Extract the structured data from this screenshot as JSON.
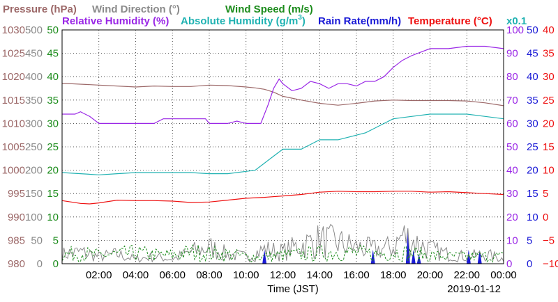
{
  "chart_data": {
    "type": "line",
    "legend": [
      {
        "key": "pressure",
        "label": "Pressure (hPa)",
        "color": "#9c6868"
      },
      {
        "key": "wind_direction",
        "label": "Wind Direction (°)",
        "color": "#8a8a8a"
      },
      {
        "key": "wind_speed",
        "label": "Wind Speed (m/s)",
        "color": "#1c8c1c"
      },
      {
        "key": "relative_humidity",
        "label": "Relative Humidity (%)",
        "color": "#9a27e6"
      },
      {
        "key": "absolute_humidity",
        "label": "Absolute Humidity (g/m",
        "superscript": "3",
        "label_suffix": ")",
        "color": "#20b2b2"
      },
      {
        "key": "rain_rate",
        "label": "Rain Rate(mm/h)",
        "color": "#1a1ad6"
      },
      {
        "key": "temperature",
        "label": "Temperature (°C)",
        "color": "#ee1111"
      },
      {
        "key": "abs_humidity_scale",
        "label": "x0.1",
        "color": "#20b2b2"
      }
    ],
    "xlabel": "Time (JST)",
    "date_label": "2019-01-12",
    "x_ticks": [
      "02:00",
      "04:00",
      "06:00",
      "08:00",
      "10:00",
      "12:00",
      "14:00",
      "16:00",
      "18:00",
      "20:00",
      "22:00",
      "00:00"
    ],
    "xlim": [
      0,
      24
    ],
    "grid": true,
    "axes": {
      "pressure": {
        "ticks": [
          "980",
          "985",
          "990",
          "995",
          "1000",
          "1005",
          "1010",
          "1015",
          "1020",
          "1025",
          "1030"
        ],
        "ylim": [
          980,
          1030
        ],
        "color": "#9c6868",
        "side": "left"
      },
      "wind_direction": {
        "ticks": [
          "0",
          "50",
          "100",
          "150",
          "200",
          "250",
          "300",
          "350",
          "400",
          "450",
          "500"
        ],
        "ylim": [
          0,
          500
        ],
        "color": "#8a8a8a",
        "side": "left"
      },
      "wind_speed": {
        "ticks": [
          "0",
          "5",
          "10",
          "15",
          "20",
          "25",
          "30",
          "35",
          "40",
          "45",
          "50"
        ],
        "ylim": [
          0,
          50
        ],
        "color": "#1c8c1c",
        "side": "left"
      },
      "relative_humidity": {
        "ticks": [
          "0",
          "10",
          "20",
          "30",
          "40",
          "50",
          "60",
          "70",
          "80",
          "90",
          "100"
        ],
        "ylim": [
          0,
          100
        ],
        "color": "#9a27e6",
        "side": "right"
      },
      "rain_rate": {
        "ticks": [
          "0",
          "5",
          "10",
          "15",
          "20",
          "25",
          "30",
          "35",
          "40",
          "45",
          "50"
        ],
        "ylim": [
          0,
          50
        ],
        "color": "#1a1ad6",
        "side": "right"
      },
      "temperature": {
        "ticks": [
          "−10",
          "−5",
          "0",
          "5",
          "10",
          "15",
          "20",
          "25",
          "30",
          "35",
          "40"
        ],
        "ylim": [
          -10,
          40
        ],
        "color": "#ee1111",
        "side": "right"
      }
    },
    "series": [
      {
        "name": "Pressure (hPa)",
        "axis": "pressure",
        "color": "#9c6868",
        "x": [
          0,
          1,
          2,
          3,
          4,
          5,
          6,
          7,
          8,
          9,
          10,
          10.5,
          11,
          11.5,
          12,
          13,
          14,
          15,
          16,
          17,
          18,
          19,
          20,
          21,
          22,
          23,
          24
        ],
        "y": [
          1018.6,
          1018.4,
          1018.2,
          1018.0,
          1017.8,
          1018.0,
          1017.9,
          1017.9,
          1018.2,
          1018.1,
          1017.8,
          1017.6,
          1017.3,
          1016.7,
          1015.8,
          1015.0,
          1014.3,
          1013.9,
          1014.3,
          1014.8,
          1015.0,
          1014.9,
          1014.9,
          1014.9,
          1014.8,
          1014.4,
          1013.8
        ]
      },
      {
        "name": "Relative Humidity (%)",
        "axis": "relative_humidity",
        "color": "#9a27e6",
        "x": [
          0,
          0.7,
          1,
          1.5,
          2,
          3,
          4,
          5,
          5.5,
          6,
          7,
          7.8,
          8,
          9,
          9.5,
          10,
          10.8,
          11.2,
          11.5,
          11.8,
          12,
          12.5,
          13,
          13.5,
          14,
          14.5,
          15,
          15.5,
          16,
          16.5,
          17,
          17.5,
          18,
          18.5,
          19,
          20,
          21,
          22,
          23,
          24
        ],
        "y": [
          64,
          64,
          65,
          63,
          60,
          60,
          60,
          60,
          62,
          62,
          62,
          62,
          60,
          60,
          61,
          60,
          60,
          68,
          75,
          79,
          77,
          74,
          75,
          78,
          77,
          75,
          77,
          77,
          76,
          78,
          78,
          80,
          84,
          87,
          89,
          92,
          92,
          93,
          93,
          92
        ]
      },
      {
        "name": "Absolute Humidity (g/m3) x0.1",
        "axis": "relative_humidity",
        "color": "#20b2b2",
        "x": [
          0,
          1,
          2,
          3,
          4,
          5,
          6,
          7,
          8,
          9,
          10,
          10.5,
          11,
          11.5,
          12,
          13,
          13.5,
          14,
          15,
          16,
          16.5,
          17,
          17.5,
          18,
          19,
          20,
          21,
          22,
          23,
          24
        ],
        "y": [
          39,
          38.5,
          38,
          38.5,
          39,
          39,
          39,
          39,
          38.5,
          38.5,
          39.5,
          40,
          43,
          46,
          49,
          49,
          51,
          53,
          53,
          55,
          56,
          58,
          60,
          62,
          63,
          64,
          64,
          64,
          63,
          62
        ]
      },
      {
        "name": "Temperature (°C)",
        "axis": "temperature",
        "color": "#ee1111",
        "x": [
          0,
          1,
          1.5,
          2,
          3,
          4,
          5,
          6,
          7,
          8,
          9,
          10,
          11,
          12,
          13,
          14,
          15,
          16,
          17,
          18,
          19,
          20,
          21,
          22,
          23,
          24
        ],
        "y": [
          3.5,
          2.9,
          2.8,
          3.0,
          3.6,
          3.5,
          3.5,
          3.4,
          3.1,
          3.2,
          3.6,
          4.0,
          4.2,
          4.5,
          4.8,
          5.3,
          5.5,
          5.4,
          5.4,
          5.5,
          5.5,
          5.3,
          5.4,
          5.2,
          5.0,
          4.8
        ]
      },
      {
        "name": "Rain Rate(mm/h)",
        "axis": "rain_rate",
        "color": "#1a1ad6",
        "kind": "spikes",
        "x": [
          11.0,
          16.9,
          18.8,
          19.1,
          19.4,
          22.1,
          22.7
        ],
        "y": [
          3,
          3,
          7,
          3,
          2,
          3,
          3
        ]
      },
      {
        "name": "Wind Direction (°)",
        "axis": "wind_direction",
        "color": "#8a8a8a",
        "kind": "noisy",
        "x": [
          0,
          1,
          2,
          3,
          4,
          5,
          6,
          7,
          8,
          9,
          10,
          11,
          12,
          13,
          14,
          15,
          16,
          17,
          18,
          18.5,
          19,
          20,
          21,
          22,
          23,
          24
        ],
        "y": [
          20,
          25,
          15,
          20,
          10,
          15,
          10,
          25,
          35,
          20,
          15,
          30,
          25,
          40,
          50,
          45,
          35,
          30,
          35,
          60,
          50,
          30,
          20,
          15,
          20,
          10
        ]
      },
      {
        "name": "Wind Speed (m/s)",
        "axis": "wind_speed",
        "color": "#1c8c1c",
        "kind": "noisy",
        "x": [
          0,
          1,
          2,
          3,
          4,
          5,
          6,
          7,
          8,
          9,
          10,
          11,
          12,
          13,
          14,
          15,
          16,
          17,
          18,
          19,
          20,
          21,
          22,
          23,
          24
        ],
        "y": [
          2.0,
          2.2,
          1.8,
          2.0,
          2.3,
          1.9,
          1.8,
          2.5,
          2.2,
          2.0,
          1.5,
          1.5,
          1.8,
          2.0,
          2.2,
          2.5,
          2.3,
          2.0,
          2.5,
          2.2,
          1.8,
          1.5,
          1.5,
          1.6,
          1.5
        ]
      }
    ]
  }
}
